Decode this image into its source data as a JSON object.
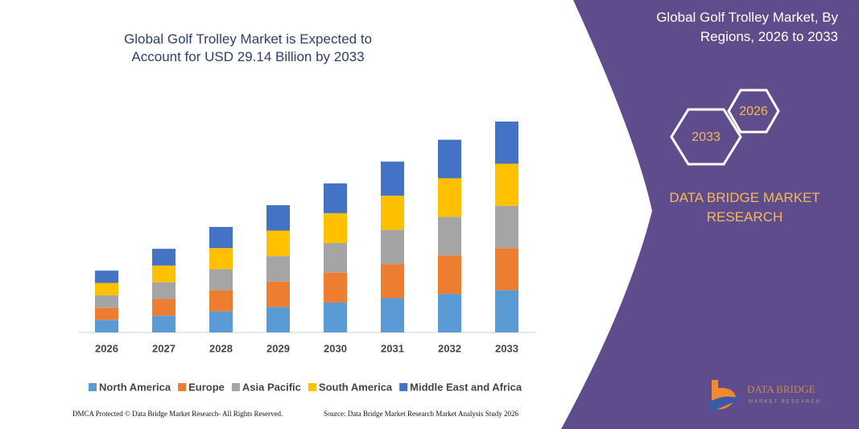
{
  "chart_data": {
    "type": "stacked_bar",
    "title": "Global Golf Trolley Market is Expected to Account for USD 29.14 Billion by 2033",
    "categories": [
      "2026",
      "2027",
      "2028",
      "2029",
      "2030",
      "2031",
      "2032",
      "2033"
    ],
    "series": [
      {
        "name": "North America",
        "color": "#5b9bd5",
        "values": [
          1.7,
          2.3,
          2.9,
          3.5,
          4.1,
          4.7,
          5.3,
          5.8
        ]
      },
      {
        "name": "Europe",
        "color": "#ed7d31",
        "values": [
          1.7,
          2.3,
          2.9,
          3.5,
          4.1,
          4.7,
          5.3,
          5.8
        ]
      },
      {
        "name": "Asia Pacific",
        "color": "#a5a5a5",
        "values": [
          1.7,
          2.3,
          2.9,
          3.5,
          4.1,
          4.7,
          5.3,
          5.8
        ]
      },
      {
        "name": "South America",
        "color": "#ffc000",
        "values": [
          1.7,
          2.3,
          2.9,
          3.5,
          4.1,
          4.7,
          5.3,
          5.8
        ]
      },
      {
        "name": "Middle East and Africa",
        "color": "#4472c4",
        "values": [
          1.7,
          2.3,
          2.9,
          3.5,
          4.1,
          4.7,
          5.3,
          5.8
        ]
      }
    ],
    "ylim": [
      0,
      30
    ],
    "grid": false,
    "legend": "bottom"
  },
  "panel": {
    "title": "Global Golf Trolley Market, By Regions, 2026 to 2033",
    "hexagons": [
      "2026",
      "2033"
    ],
    "brand": "DATA BRIDGE MARKET RESEARCH"
  },
  "logo": {
    "name": "DATA BRIDGE",
    "tagline": "MARKET RESEARCH"
  },
  "footer": {
    "copyright": "DMCA Protected © Data Bridge Market Research- All Rights Reserved.",
    "source": "Source: Data Bridge Market Research Market Analysis Study 2026"
  }
}
